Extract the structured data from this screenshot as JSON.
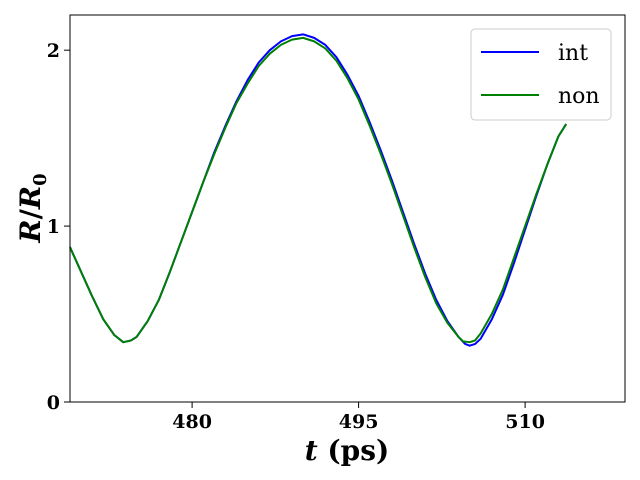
{
  "chart_data": {
    "type": "line",
    "title": "",
    "xlabel": "t (ps)",
    "ylabel": "R/R0",
    "xlim": [
      469,
      519
    ],
    "ylim": [
      0,
      2.2
    ],
    "xticks": [
      480,
      495,
      510
    ],
    "yticks": [
      0,
      1,
      2
    ],
    "grid": false,
    "legend_position": "top-right",
    "series": [
      {
        "name": "int",
        "color": "#0000ff",
        "points": [
          [
            469,
            0.88
          ],
          [
            470,
            0.74
          ],
          [
            471,
            0.6
          ],
          [
            472,
            0.47
          ],
          [
            473,
            0.38
          ],
          [
            473.8,
            0.34
          ],
          [
            474.5,
            0.35
          ],
          [
            475,
            0.37
          ],
          [
            476,
            0.46
          ],
          [
            477,
            0.58
          ],
          [
            478,
            0.74
          ],
          [
            479,
            0.91
          ],
          [
            480,
            1.08
          ],
          [
            481,
            1.25
          ],
          [
            482,
            1.42
          ],
          [
            483,
            1.57
          ],
          [
            484,
            1.71
          ],
          [
            485,
            1.83
          ],
          [
            486,
            1.93
          ],
          [
            487,
            2.0
          ],
          [
            488,
            2.05
          ],
          [
            489,
            2.08
          ],
          [
            490,
            2.09
          ],
          [
            491,
            2.07
          ],
          [
            492,
            2.03
          ],
          [
            493,
            1.96
          ],
          [
            494,
            1.86
          ],
          [
            495,
            1.74
          ],
          [
            496,
            1.59
          ],
          [
            497,
            1.43
          ],
          [
            498,
            1.26
          ],
          [
            499,
            1.08
          ],
          [
            500,
            0.9
          ],
          [
            501,
            0.73
          ],
          [
            502,
            0.58
          ],
          [
            503,
            0.46
          ],
          [
            504,
            0.37
          ],
          [
            504.6,
            0.33
          ],
          [
            505,
            0.32
          ],
          [
            505.5,
            0.33
          ],
          [
            506,
            0.36
          ],
          [
            507,
            0.47
          ],
          [
            508,
            0.61
          ],
          [
            509,
            0.79
          ],
          [
            510,
            0.98
          ],
          [
            511,
            1.17
          ],
          [
            512,
            1.35
          ],
          [
            513,
            1.51
          ],
          [
            513.7,
            1.58
          ]
        ]
      },
      {
        "name": "non",
        "color": "#008000",
        "points": [
          [
            469,
            0.88
          ],
          [
            470,
            0.74
          ],
          [
            471,
            0.6
          ],
          [
            472,
            0.47
          ],
          [
            473,
            0.38
          ],
          [
            473.8,
            0.34
          ],
          [
            474.5,
            0.35
          ],
          [
            475,
            0.37
          ],
          [
            476,
            0.46
          ],
          [
            477,
            0.58
          ],
          [
            478,
            0.74
          ],
          [
            479,
            0.91
          ],
          [
            480,
            1.08
          ],
          [
            481,
            1.25
          ],
          [
            482,
            1.41
          ],
          [
            483,
            1.56
          ],
          [
            484,
            1.7
          ],
          [
            485,
            1.81
          ],
          [
            486,
            1.91
          ],
          [
            487,
            1.98
          ],
          [
            488,
            2.03
          ],
          [
            489,
            2.06
          ],
          [
            490,
            2.07
          ],
          [
            491,
            2.05
          ],
          [
            492,
            2.01
          ],
          [
            493,
            1.94
          ],
          [
            494,
            1.84
          ],
          [
            495,
            1.72
          ],
          [
            496,
            1.57
          ],
          [
            497,
            1.41
          ],
          [
            498,
            1.24
          ],
          [
            499,
            1.06
          ],
          [
            500,
            0.88
          ],
          [
            501,
            0.71
          ],
          [
            502,
            0.56
          ],
          [
            503,
            0.45
          ],
          [
            504,
            0.37
          ],
          [
            504.4,
            0.345
          ],
          [
            505,
            0.34
          ],
          [
            505.5,
            0.35
          ],
          [
            506,
            0.39
          ],
          [
            507,
            0.5
          ],
          [
            508,
            0.64
          ],
          [
            509,
            0.82
          ],
          [
            510,
            1.0
          ],
          [
            511,
            1.18
          ],
          [
            512,
            1.35
          ],
          [
            513,
            1.51
          ],
          [
            513.7,
            1.58
          ]
        ]
      }
    ]
  }
}
